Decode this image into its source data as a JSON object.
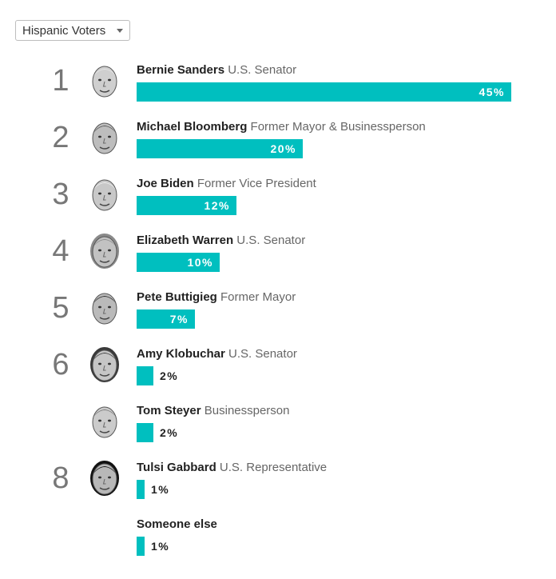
{
  "filter": {
    "selected": "Hispanic Voters",
    "caret_icon": "caret-down-icon"
  },
  "colors": {
    "bar": "#00bfbf",
    "rank": "#777777"
  },
  "chart_data": {
    "type": "bar",
    "orientation": "horizontal",
    "xlim": [
      0,
      45
    ],
    "categories": [
      "Bernie Sanders",
      "Michael Bloomberg",
      "Joe Biden",
      "Elizabeth Warren",
      "Pete Buttigieg",
      "Amy Klobuchar",
      "Tom Steyer",
      "Tulsi Gabbard",
      "Someone else"
    ],
    "values": [
      45,
      20,
      12,
      10,
      7,
      2,
      2,
      1,
      1
    ],
    "rows": [
      {
        "rank": "1",
        "name": "Bernie Sanders",
        "title": "U.S. Senator",
        "value": 45,
        "label": "45%",
        "photo": "bernie-sanders-photo"
      },
      {
        "rank": "2",
        "name": "Michael Bloomberg",
        "title": "Former Mayor & Businessperson",
        "value": 20,
        "label": "20%",
        "photo": "michael-bloomberg-photo"
      },
      {
        "rank": "3",
        "name": "Joe Biden",
        "title": "Former Vice President",
        "value": 12,
        "label": "12%",
        "photo": "joe-biden-photo"
      },
      {
        "rank": "4",
        "name": "Elizabeth Warren",
        "title": "U.S. Senator",
        "value": 10,
        "label": "10%",
        "photo": "elizabeth-warren-photo"
      },
      {
        "rank": "5",
        "name": "Pete Buttigieg",
        "title": "Former Mayor",
        "value": 7,
        "label": "7%",
        "photo": "pete-buttigieg-photo"
      },
      {
        "rank": "6",
        "name": "Amy Klobuchar",
        "title": "U.S. Senator",
        "value": 2,
        "label": "2%",
        "photo": "amy-klobuchar-photo"
      },
      {
        "rank": "",
        "name": "Tom Steyer",
        "title": "Businessperson",
        "value": 2,
        "label": "2%",
        "photo": "tom-steyer-photo"
      },
      {
        "rank": "8",
        "name": "Tulsi Gabbard",
        "title": "U.S. Representative",
        "value": 1,
        "label": "1%",
        "photo": "tulsi-gabbard-photo"
      },
      {
        "rank": "",
        "name": "Someone else",
        "title": "",
        "value": 1,
        "label": "1%",
        "photo": ""
      }
    ]
  }
}
